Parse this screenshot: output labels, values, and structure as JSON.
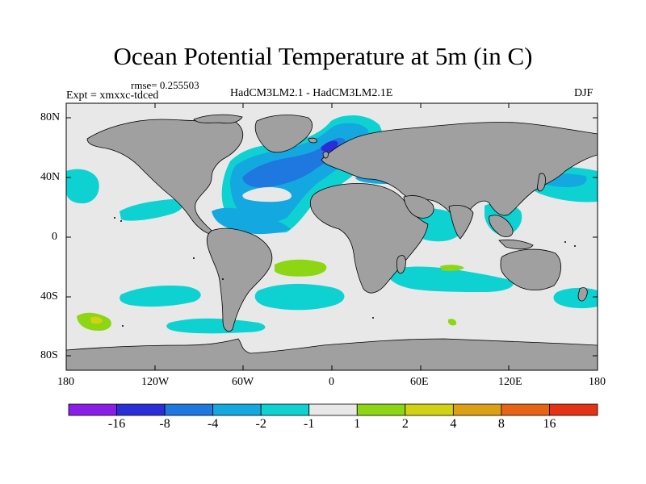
{
  "title": "Ocean Potential Temperature at 5m (in C)",
  "rmse": "rmse= 0.255503",
  "expt": "Expt = xmxxc-tdced",
  "comparison": "HadCM3LM2.1 - HadCM3LM2.1E",
  "season": "DJF",
  "lat_ticks": [
    "80N",
    "40N",
    "0",
    "40S",
    "80S"
  ],
  "lon_ticks": [
    "180",
    "120W",
    "60W",
    "0",
    "60E",
    "120E",
    "180"
  ],
  "colorbar": {
    "colors": [
      "#8a1ee8",
      "#2a2ed8",
      "#1e78e0",
      "#14a8e0",
      "#0ed2d2",
      "#e8e8e8",
      "#8cd614",
      "#d2d214",
      "#dca014",
      "#e66414",
      "#e63214"
    ],
    "labels": [
      "-16",
      "-8",
      "-4",
      "-2",
      "-1",
      "1",
      "2",
      "4",
      "8",
      "16"
    ]
  },
  "colors": {
    "land": "#a0a0a0",
    "ocean_neutral": "#e8e8e8"
  }
}
